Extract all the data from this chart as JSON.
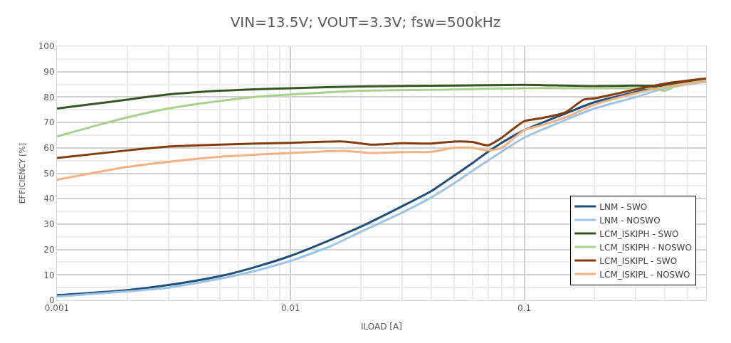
{
  "chart_data": {
    "type": "line",
    "title": "VIN=13.5V; VOUT=3.3V; fsw=500kHz",
    "xlabel": "ILOAD [A]",
    "ylabel": "EFFICIENCY [%]",
    "log": "x",
    "xlim": [
      0.001,
      0.6
    ],
    "xticks": [
      0.001,
      0.01,
      0.1
    ],
    "ylim": [
      0,
      100
    ],
    "yticks": [
      0,
      10,
      20,
      30,
      40,
      50,
      60,
      70,
      80,
      90,
      100
    ],
    "grid": true,
    "legend": "bottom right",
    "marker": "none",
    "line_style": "solid",
    "series": [
      {
        "name": "LNM - SWO",
        "color": "#1f4e79",
        "x": [
          0.001,
          0.002,
          0.003,
          0.005,
          0.007,
          0.01,
          0.015,
          0.02,
          0.03,
          0.04,
          0.05,
          0.06,
          0.07,
          0.08,
          0.1,
          0.15,
          0.2,
          0.3,
          0.4,
          0.6
        ],
        "values": [
          2,
          4,
          6,
          9.5,
          13,
          17.5,
          24,
          29,
          37,
          43,
          49,
          54,
          58.5,
          62,
          67,
          73.5,
          78,
          82,
          85,
          87
        ]
      },
      {
        "name": "LNM - NOSWO",
        "color": "#9dc3e6",
        "x": [
          0.001,
          0.002,
          0.003,
          0.005,
          0.007,
          0.01,
          0.015,
          0.02,
          0.03,
          0.04,
          0.05,
          0.06,
          0.07,
          0.08,
          0.1,
          0.15,
          0.2,
          0.3,
          0.4,
          0.6
        ],
        "values": [
          1.5,
          3.5,
          5,
          8.5,
          11.5,
          15.5,
          21.5,
          27,
          34.5,
          40.5,
          46,
          51,
          55,
          58.5,
          64,
          71,
          75.5,
          80,
          83.5,
          86
        ]
      },
      {
        "name": "LCM_ISKIPH - SWO",
        "color": "#375623",
        "x": [
          0.001,
          0.0015,
          0.002,
          0.003,
          0.005,
          0.01,
          0.02,
          0.05,
          0.1,
          0.15,
          0.2,
          0.3,
          0.4,
          0.5,
          0.6
        ],
        "values": [
          75.5,
          77.5,
          79,
          81,
          82.5,
          83.5,
          84.2,
          84.5,
          84.8,
          84.5,
          84.3,
          84.5,
          84.5,
          86,
          87
        ]
      },
      {
        "name": "LCM_ISKIPH - NOSWO",
        "color": "#a9d18e",
        "x": [
          0.001,
          0.0015,
          0.002,
          0.003,
          0.005,
          0.007,
          0.01,
          0.02,
          0.05,
          0.1,
          0.15,
          0.2,
          0.3,
          0.35,
          0.4,
          0.45,
          0.6
        ],
        "values": [
          64.5,
          69,
          72,
          75.5,
          78.5,
          80,
          81,
          82.5,
          83,
          83.5,
          83.5,
          83.5,
          83.5,
          83.5,
          82.5,
          84.5,
          86.5
        ]
      },
      {
        "name": "LCM_ISKIPL - SWO",
        "color": "#843c0c",
        "x": [
          0.001,
          0.002,
          0.003,
          0.005,
          0.01,
          0.017,
          0.022,
          0.03,
          0.04,
          0.05,
          0.06,
          0.07,
          0.08,
          0.1,
          0.12,
          0.15,
          0.18,
          0.2,
          0.3,
          0.4,
          0.6
        ],
        "values": [
          56,
          59,
          60.5,
          61.3,
          62,
          62.5,
          61.3,
          61.8,
          61.7,
          62.5,
          62.3,
          61,
          64,
          70.5,
          71.8,
          74,
          79,
          79.5,
          83,
          85.3,
          87.3
        ]
      },
      {
        "name": "LCM_ISKIPL - NOSWO",
        "color": "#f4b183",
        "x": [
          0.001,
          0.0015,
          0.002,
          0.003,
          0.005,
          0.01,
          0.017,
          0.022,
          0.03,
          0.04,
          0.05,
          0.06,
          0.07,
          0.08,
          0.1,
          0.12,
          0.15,
          0.2,
          0.3,
          0.4,
          0.6
        ],
        "values": [
          47.5,
          50.5,
          52.5,
          54.5,
          56.5,
          58,
          58.8,
          58,
          58.3,
          58.5,
          60,
          60,
          59,
          60,
          67,
          69,
          72,
          77,
          81.5,
          84,
          86.5
        ]
      }
    ]
  }
}
